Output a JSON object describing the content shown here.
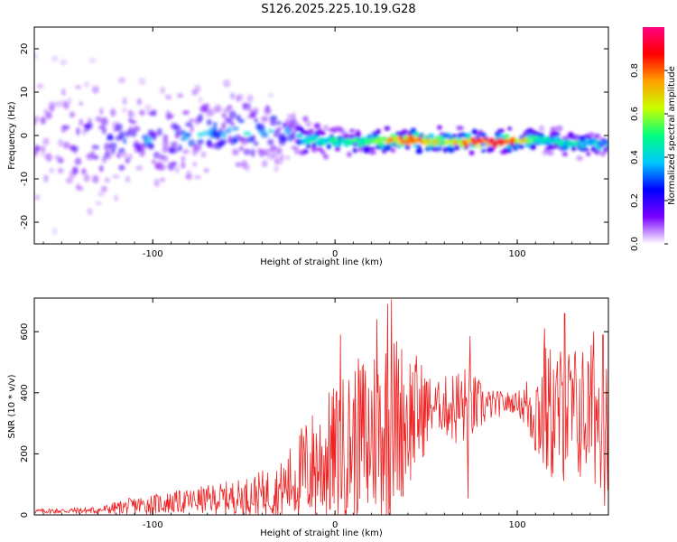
{
  "title": "S126.2025.225.10.19.G28",
  "colors": {
    "snr_line": "#ee2222",
    "axis": "#000000",
    "background": "#ffffff"
  },
  "chart_data": [
    {
      "type": "heatmap",
      "xlabel": "Height of straight line (km)",
      "ylabel": "Frequency (Hz)",
      "xlim": [
        -165,
        150
      ],
      "ylim": [
        -25,
        25
      ],
      "x_ticks": [
        -100,
        0,
        100
      ],
      "y_ticks": [
        -20,
        -10,
        0,
        10,
        20
      ],
      "colorbar": {
        "label": "Normalized spectral amplitude",
        "range": [
          0,
          1
        ],
        "ticks": [
          0.0,
          0.2,
          0.4,
          0.6,
          0.8
        ],
        "colormap": [
          "#ffffff",
          "#7a00ff",
          "#0000ff",
          "#00c8ff",
          "#00ff80",
          "#c8ff00",
          "#ffa000",
          "#ff0000",
          "#ff0080"
        ]
      },
      "ridge": [
        {
          "x": -160,
          "y": 0,
          "amp": 0.15
        },
        {
          "x": -140,
          "y": -2,
          "amp": 0.2
        },
        {
          "x": -120,
          "y": -2,
          "amp": 0.25
        },
        {
          "x": -100,
          "y": -1,
          "amp": 0.3
        },
        {
          "x": -80,
          "y": 0,
          "amp": 0.35
        },
        {
          "x": -60,
          "y": 1,
          "amp": 0.35
        },
        {
          "x": -40,
          "y": 1,
          "amp": 0.4
        },
        {
          "x": -25,
          "y": 1,
          "amp": 0.35
        },
        {
          "x": -15,
          "y": -1,
          "amp": 0.45
        },
        {
          "x": 0,
          "y": -1.5,
          "amp": 0.5
        },
        {
          "x": 20,
          "y": -1.5,
          "amp": 0.55
        },
        {
          "x": 40,
          "y": -1,
          "amp": 0.95
        },
        {
          "x": 60,
          "y": -1.5,
          "amp": 0.6
        },
        {
          "x": 75,
          "y": -1.5,
          "amp": 0.9
        },
        {
          "x": 95,
          "y": -1.5,
          "amp": 0.95
        },
        {
          "x": 110,
          "y": -1,
          "amp": 0.5
        },
        {
          "x": 130,
          "y": -2,
          "amp": 0.45
        },
        {
          "x": 150,
          "y": -2,
          "amp": 0.4
        }
      ],
      "spread_hz": [
        {
          "x": -160,
          "spread": 24
        },
        {
          "x": -120,
          "spread": 16
        },
        {
          "x": -80,
          "spread": 10
        },
        {
          "x": -40,
          "spread": 9
        },
        {
          "x": -20,
          "spread": 4
        },
        {
          "x": 0,
          "spread": 2.5
        },
        {
          "x": 150,
          "spread": 2.5
        }
      ]
    },
    {
      "type": "line",
      "xlabel": "Height of straight line (km)",
      "ylabel": "SNR (10 * v/v)",
      "xlim": [
        -165,
        150
      ],
      "ylim": [
        0,
        710
      ],
      "x_ticks": [
        -100,
        0,
        100
      ],
      "y_ticks": [
        0,
        200,
        400,
        600
      ],
      "envelope": [
        {
          "x": -165,
          "mean": 12,
          "amp": 8
        },
        {
          "x": -130,
          "mean": 15,
          "amp": 12
        },
        {
          "x": -110,
          "mean": 30,
          "amp": 30
        },
        {
          "x": -80,
          "mean": 45,
          "amp": 40
        },
        {
          "x": -50,
          "mean": 60,
          "amp": 60
        },
        {
          "x": -30,
          "mean": 80,
          "amp": 90
        },
        {
          "x": -15,
          "mean": 150,
          "amp": 180
        },
        {
          "x": 0,
          "mean": 200,
          "amp": 230
        },
        {
          "x": 15,
          "mean": 260,
          "amp": 270
        },
        {
          "x": 30,
          "mean": 300,
          "amp": 320
        },
        {
          "x": 45,
          "mean": 330,
          "amp": 200
        },
        {
          "x": 55,
          "mean": 360,
          "amp": 70
        },
        {
          "x": 70,
          "mean": 350,
          "amp": 150
        },
        {
          "x": 85,
          "mean": 360,
          "amp": 50
        },
        {
          "x": 100,
          "mean": 370,
          "amp": 30
        },
        {
          "x": 115,
          "mean": 330,
          "amp": 230
        },
        {
          "x": 135,
          "mean": 330,
          "amp": 230
        },
        {
          "x": 150,
          "mean": 330,
          "amp": 250
        }
      ],
      "peaks": [
        {
          "x": 31,
          "y": 705
        },
        {
          "x": 29,
          "y": 690
        },
        {
          "x": 23,
          "y": 640
        },
        {
          "x": 126,
          "y": 660
        },
        {
          "x": 147,
          "y": 590
        },
        {
          "x": 142,
          "y": 600
        },
        {
          "x": 74,
          "y": 585
        },
        {
          "x": 115,
          "y": 610
        },
        {
          "x": 3,
          "y": 590
        }
      ],
      "dips": [
        {
          "x": 73,
          "y": 55
        },
        {
          "x": 148,
          "y": 30
        },
        {
          "x": 18,
          "y": 40
        }
      ]
    }
  ]
}
